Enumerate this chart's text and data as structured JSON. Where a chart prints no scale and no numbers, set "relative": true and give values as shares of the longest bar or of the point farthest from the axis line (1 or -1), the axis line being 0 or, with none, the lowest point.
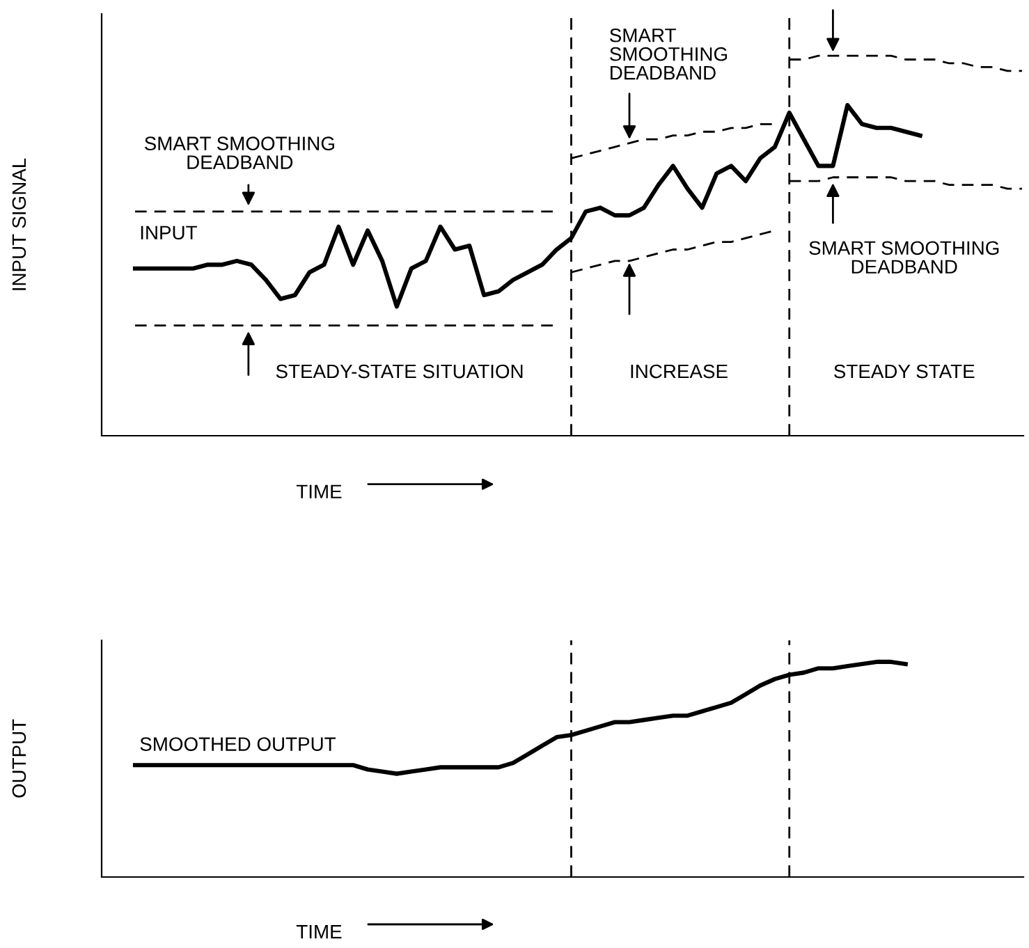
{
  "chart_data": [
    {
      "type": "line",
      "relative": true,
      "legend": false,
      "ylabel": "INPUT SIGNAL",
      "xlabel": "TIME",
      "categories": [
        null,
        null,
        null,
        null,
        null,
        null,
        null,
        null,
        null,
        null,
        null,
        null,
        null,
        null,
        null,
        null,
        null,
        null,
        null,
        null,
        null,
        null,
        null,
        null,
        null,
        null,
        null,
        null,
        null,
        null,
        null,
        null,
        null,
        null,
        null,
        null,
        null,
        null,
        null,
        null,
        null,
        null,
        null,
        null,
        null,
        null,
        null,
        null,
        null,
        null,
        null,
        null,
        null,
        null,
        null,
        null,
        null,
        null,
        null,
        null,
        null,
        null
      ],
      "series": [
        {
          "name": "INPUT",
          "color": "#000000",
          "line_style": "solid",
          "values": [
            0.44,
            0.44,
            0.44,
            0.44,
            0.44,
            0.45,
            0.45,
            0.46,
            0.45,
            0.41,
            0.36,
            0.37,
            0.43,
            0.45,
            0.55,
            0.45,
            0.54,
            0.46,
            0.34,
            0.44,
            0.46,
            0.55,
            0.49,
            0.5,
            0.37,
            0.38,
            0.41,
            0.43,
            0.45,
            0.49,
            0.52,
            0.59,
            0.6,
            0.58,
            0.58,
            0.6,
            0.66,
            0.71,
            0.65,
            0.6,
            0.69,
            0.71,
            0.67,
            0.73,
            0.76,
            0.85,
            0.78,
            0.71,
            0.71,
            0.87,
            0.82,
            0.81,
            0.81,
            0.8,
            0.79,
            null,
            null,
            null,
            null,
            null,
            null,
            null
          ]
        },
        {
          "color": "#000000",
          "line_style": "dashed",
          "values": [
            0.59,
            0.59,
            0.59,
            0.59,
            0.59,
            0.59,
            0.59,
            0.59,
            0.59,
            0.59,
            0.59,
            0.59,
            0.59,
            0.59,
            0.59,
            0.59,
            0.59,
            0.59,
            0.59,
            0.59,
            0.59,
            0.59,
            0.59,
            0.59,
            0.59,
            0.59,
            0.59,
            0.59,
            0.59,
            0.59,
            null,
            null,
            null,
            null,
            null,
            null,
            null,
            null,
            null,
            null,
            null,
            null,
            null,
            null,
            null,
            null,
            null,
            null,
            null,
            null,
            null,
            null,
            null,
            null,
            null,
            null,
            null,
            null,
            null,
            null,
            null,
            null
          ]
        },
        {
          "color": "#000000",
          "line_style": "dashed",
          "values": [
            0.29,
            0.29,
            0.29,
            0.29,
            0.29,
            0.29,
            0.29,
            0.29,
            0.29,
            0.29,
            0.29,
            0.29,
            0.29,
            0.29,
            0.29,
            0.29,
            0.29,
            0.29,
            0.29,
            0.29,
            0.29,
            0.29,
            0.29,
            0.29,
            0.29,
            0.29,
            0.29,
            0.29,
            0.29,
            0.29,
            null,
            null,
            null,
            null,
            null,
            null,
            null,
            null,
            null,
            null,
            null,
            null,
            null,
            null,
            null,
            null,
            null,
            null,
            null,
            null,
            null,
            null,
            null,
            null,
            null,
            null,
            null,
            null,
            null,
            null,
            null,
            null
          ]
        },
        {
          "color": "#000000",
          "line_style": "dashed",
          "values": [
            null,
            null,
            null,
            null,
            null,
            null,
            null,
            null,
            null,
            null,
            null,
            null,
            null,
            null,
            null,
            null,
            null,
            null,
            null,
            null,
            null,
            null,
            null,
            null,
            null,
            null,
            null,
            null,
            null,
            null,
            0.73,
            0.74,
            0.75,
            0.76,
            0.77,
            0.78,
            0.78,
            0.79,
            0.79,
            0.8,
            0.8,
            0.81,
            0.81,
            0.82,
            0.82,
            null,
            null,
            null,
            null,
            null,
            null,
            null,
            null,
            null,
            null,
            null,
            null,
            null,
            null,
            null,
            null,
            null
          ]
        },
        {
          "color": "#000000",
          "line_style": "dashed",
          "values": [
            null,
            null,
            null,
            null,
            null,
            null,
            null,
            null,
            null,
            null,
            null,
            null,
            null,
            null,
            null,
            null,
            null,
            null,
            null,
            null,
            null,
            null,
            null,
            null,
            null,
            null,
            null,
            null,
            null,
            null,
            0.43,
            0.44,
            0.45,
            0.46,
            0.46,
            0.47,
            0.48,
            0.49,
            0.49,
            0.5,
            0.51,
            0.51,
            0.52,
            0.53,
            0.54,
            null,
            null,
            null,
            null,
            null,
            null,
            null,
            null,
            null,
            null,
            null,
            null,
            null,
            null,
            null,
            null,
            null
          ]
        },
        {
          "color": "#000000",
          "line_style": "dashed",
          "values": [
            null,
            null,
            null,
            null,
            null,
            null,
            null,
            null,
            null,
            null,
            null,
            null,
            null,
            null,
            null,
            null,
            null,
            null,
            null,
            null,
            null,
            null,
            null,
            null,
            null,
            null,
            null,
            null,
            null,
            null,
            null,
            null,
            null,
            null,
            null,
            null,
            null,
            null,
            null,
            null,
            null,
            null,
            null,
            null,
            null,
            0.99,
            0.99,
            1.0,
            1.0,
            1.0,
            1.0,
            1.0,
            1.0,
            0.99,
            0.99,
            0.99,
            0.98,
            0.98,
            0.97,
            0.97,
            0.96,
            0.96
          ]
        },
        {
          "color": "#000000",
          "line_style": "dashed",
          "values": [
            null,
            null,
            null,
            null,
            null,
            null,
            null,
            null,
            null,
            null,
            null,
            null,
            null,
            null,
            null,
            null,
            null,
            null,
            null,
            null,
            null,
            null,
            null,
            null,
            null,
            null,
            null,
            null,
            null,
            null,
            null,
            null,
            null,
            null,
            null,
            null,
            null,
            null,
            null,
            null,
            null,
            null,
            null,
            null,
            null,
            0.67,
            0.67,
            0.67,
            0.68,
            0.68,
            0.68,
            0.68,
            0.68,
            0.67,
            0.67,
            0.67,
            0.66,
            0.66,
            0.66,
            0.66,
            0.65,
            0.65
          ]
        }
      ],
      "annotations": [
        "SMART SMOOTHING\nDEADBAND",
        "SMART\nSMOOTHING\nDEADBAND",
        "SMART SMOOTHING\nDEADBAND",
        "STEADY-STATE SITUATION",
        "INCREASE",
        "STEADY STATE"
      ]
    },
    {
      "type": "line",
      "relative": true,
      "legend": false,
      "ylabel": "OUTPUT",
      "xlabel": "TIME",
      "categories": [
        null,
        null,
        null,
        null,
        null,
        null,
        null,
        null,
        null,
        null,
        null,
        null,
        null,
        null,
        null,
        null,
        null,
        null,
        null,
        null,
        null,
        null,
        null,
        null,
        null,
        null,
        null,
        null,
        null,
        null,
        null,
        null,
        null,
        null,
        null,
        null,
        null,
        null,
        null,
        null,
        null,
        null,
        null,
        null,
        null,
        null,
        null,
        null,
        null,
        null,
        null,
        null,
        null,
        null,
        null,
        null,
        null,
        null,
        null,
        null,
        null,
        null
      ],
      "series": [
        {
          "name": "SMOOTHED OUTPUT",
          "color": "#000000",
          "line_style": "solid",
          "values": [
            0.52,
            0.52,
            0.52,
            0.52,
            0.52,
            0.52,
            0.52,
            0.52,
            0.52,
            0.52,
            0.52,
            0.52,
            0.52,
            0.52,
            0.52,
            0.52,
            0.5,
            0.49,
            0.48,
            0.49,
            0.5,
            0.51,
            0.51,
            0.51,
            0.51,
            0.51,
            0.53,
            0.57,
            0.61,
            0.65,
            0.66,
            0.68,
            0.7,
            0.72,
            0.72,
            0.73,
            0.74,
            0.75,
            0.75,
            0.77,
            0.79,
            0.81,
            0.85,
            0.89,
            0.92,
            0.94,
            0.95,
            0.97,
            0.97,
            0.98,
            0.99,
            1.0,
            1.0,
            0.99,
            null,
            null,
            null,
            null,
            null,
            null,
            null,
            null
          ]
        }
      ]
    }
  ]
}
